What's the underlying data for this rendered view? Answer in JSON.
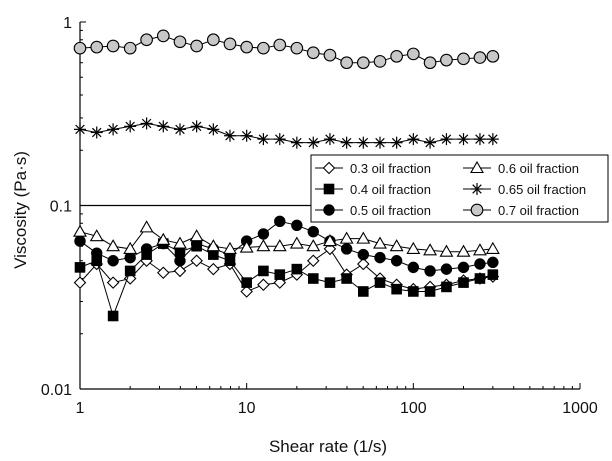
{
  "chart_data": {
    "type": "line",
    "xlabel": "Shear rate (1/s)",
    "ylabel": "Viscosity (Pa·s)",
    "x_scale": "log",
    "y_scale": "log",
    "xlim": [
      1,
      1000
    ],
    "ylim": [
      0.01,
      1
    ],
    "x_ticks": [
      {
        "value": 1,
        "label": "1"
      },
      {
        "value": 10,
        "label": "10"
      },
      {
        "value": 100,
        "label": "100"
      },
      {
        "value": 1000,
        "label": "1000"
      }
    ],
    "y_ticks": [
      {
        "value": 0.01,
        "label": "0.01"
      },
      {
        "value": 0.1,
        "label": "0.1"
      },
      {
        "value": 1,
        "label": "1"
      }
    ],
    "grid": false,
    "reference_line_y": 0.1,
    "legend_position": "center-right",
    "x": [
      1.0,
      1.26,
      1.58,
      2.0,
      2.51,
      3.16,
      3.98,
      5.01,
      6.31,
      7.94,
      10.0,
      12.6,
      15.8,
      20.0,
      25.1,
      31.6,
      39.8,
      50.1,
      63.1,
      79.4,
      100,
      126,
      158,
      200,
      251,
      300
    ],
    "series": [
      {
        "name": "0.3 oil fraction",
        "marker": "diamond-open",
        "values": [
          0.038,
          0.048,
          0.038,
          0.04,
          0.05,
          0.043,
          0.044,
          0.05,
          0.045,
          0.048,
          0.034,
          0.037,
          0.038,
          0.042,
          0.05,
          0.058,
          0.042,
          0.048,
          0.04,
          0.037,
          0.035,
          0.036,
          0.037,
          0.039,
          0.04,
          0.041
        ]
      },
      {
        "name": "0.4 oil fraction",
        "marker": "square-filled",
        "values": [
          0.046,
          0.05,
          0.025,
          0.044,
          0.054,
          0.062,
          0.056,
          0.06,
          0.054,
          0.05,
          0.038,
          0.044,
          0.042,
          0.045,
          0.04,
          0.038,
          0.04,
          0.034,
          0.038,
          0.035,
          0.034,
          0.034,
          0.036,
          0.038,
          0.04,
          0.042
        ]
      },
      {
        "name": "0.5 oil fraction",
        "marker": "circle-filled",
        "values": [
          0.064,
          0.055,
          0.05,
          0.052,
          0.058,
          0.062,
          0.05,
          0.062,
          0.058,
          0.054,
          0.064,
          0.07,
          0.082,
          0.078,
          0.072,
          0.064,
          0.058,
          0.054,
          0.052,
          0.05,
          0.046,
          0.044,
          0.045,
          0.046,
          0.048,
          0.049
        ]
      },
      {
        "name": "0.6 oil fraction",
        "marker": "triangle-open",
        "values": [
          0.072,
          0.068,
          0.06,
          0.058,
          0.076,
          0.065,
          0.062,
          0.068,
          0.06,
          0.058,
          0.059,
          0.06,
          0.06,
          0.062,
          0.06,
          0.064,
          0.066,
          0.066,
          0.062,
          0.06,
          0.058,
          0.057,
          0.056,
          0.056,
          0.057,
          0.058
        ]
      },
      {
        "name": "0.65 oil fraction",
        "marker": "asterisk",
        "values": [
          0.26,
          0.25,
          0.26,
          0.27,
          0.28,
          0.27,
          0.26,
          0.27,
          0.26,
          0.24,
          0.24,
          0.23,
          0.23,
          0.22,
          0.22,
          0.23,
          0.22,
          0.22,
          0.22,
          0.22,
          0.23,
          0.22,
          0.23,
          0.23,
          0.23,
          0.23
        ]
      },
      {
        "name": "0.7 oil fraction",
        "marker": "circle-gray",
        "values": [
          0.72,
          0.73,
          0.74,
          0.72,
          0.8,
          0.84,
          0.78,
          0.74,
          0.8,
          0.76,
          0.73,
          0.72,
          0.75,
          0.72,
          0.68,
          0.66,
          0.6,
          0.6,
          0.61,
          0.65,
          0.67,
          0.6,
          0.62,
          0.63,
          0.64,
          0.65
        ]
      }
    ]
  },
  "colors": {
    "marker_stroke": "#000000",
    "marker_open_fill": "#ffffff",
    "marker_gray_fill": "#c8c8c8"
  }
}
